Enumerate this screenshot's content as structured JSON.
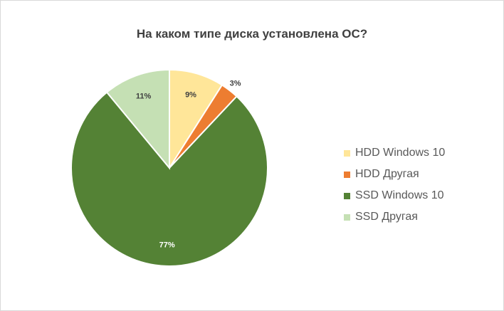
{
  "chart_data": {
    "type": "pie",
    "title": "На каком типе диска установлена ОС?",
    "slices": [
      {
        "label": "HDD Windows 10",
        "value": 9,
        "display": "9%",
        "color": "#FFE699"
      },
      {
        "label": "HDD Другая",
        "value": 3,
        "display": "3%",
        "color": "#ED7D31"
      },
      {
        "label": "SSD Windows 10",
        "value": 77,
        "display": "77%",
        "color": "#548235"
      },
      {
        "label": "SSD Другая",
        "value": 11,
        "display": "11%",
        "color": "#C5E0B4"
      }
    ],
    "legend_position": "right",
    "label_colors": {
      "inside_dark": "#404040",
      "inside_light": "#ffffff"
    }
  }
}
